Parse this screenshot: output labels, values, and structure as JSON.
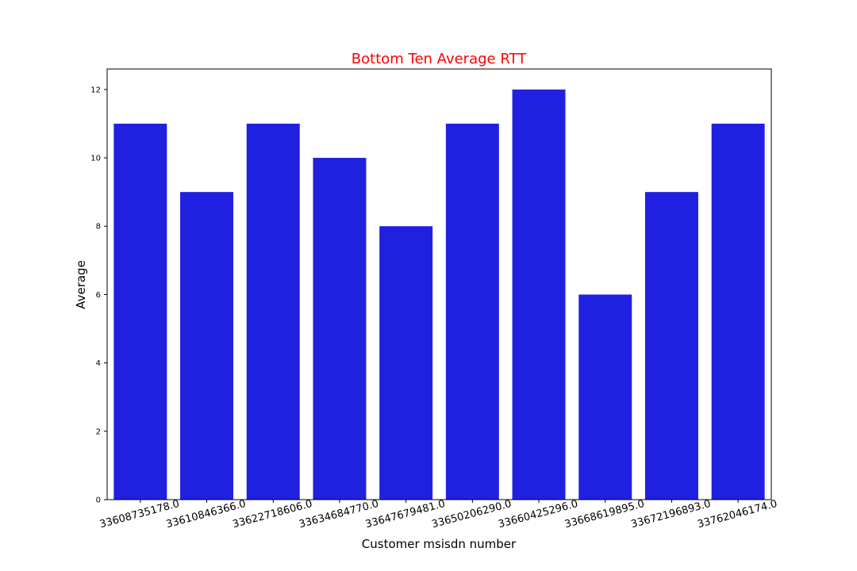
{
  "chart_data": {
    "type": "bar",
    "title": "Bottom Ten Average RTT",
    "title_color": "#ff0000",
    "xlabel": "Customer msisdn number",
    "ylabel": "Average",
    "bar_color": "#2020e0",
    "categories": [
      "33608735178.0",
      "33610846366.0",
      "33622718606.0",
      "33634684770.0",
      "33647679481.0",
      "33650206290.0",
      "33660425296.0",
      "33668619895.0",
      "33672196893.0",
      "33762046174.0"
    ],
    "values": [
      11,
      9,
      11,
      10,
      8,
      11,
      12,
      6,
      9,
      11
    ],
    "ylim": [
      0,
      12.6
    ],
    "yticks": [
      0,
      2,
      4,
      6,
      8,
      10,
      12
    ],
    "grid": false,
    "legend": "none"
  }
}
